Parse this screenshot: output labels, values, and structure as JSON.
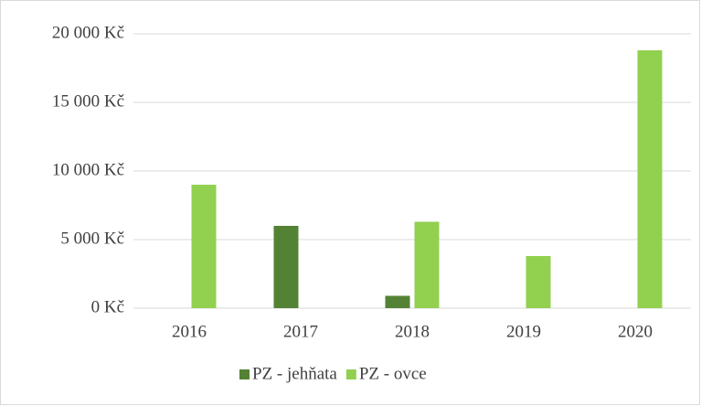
{
  "chart_data": {
    "type": "bar",
    "categories": [
      "2016",
      "2017",
      "2018",
      "2019",
      "2020"
    ],
    "series": [
      {
        "name": "PZ - jehňata",
        "color": "#548235",
        "values": [
          0,
          6000,
          900,
          0,
          0
        ]
      },
      {
        "name": "PZ - ovce",
        "color": "#92d050",
        "values": [
          9000,
          0,
          6300,
          3800,
          18800
        ]
      }
    ],
    "ylim": [
      0,
      20000
    ],
    "yticks": [
      {
        "value": 0,
        "label": "0 Kč"
      },
      {
        "value": 5000,
        "label": "5 000 Kč"
      },
      {
        "value": 10000,
        "label": "10 000 Kč"
      },
      {
        "value": 15000,
        "label": "15 000 Kč"
      },
      {
        "value": 20000,
        "label": "20 000 Kč"
      }
    ],
    "grid": true,
    "legend": "bottom"
  }
}
